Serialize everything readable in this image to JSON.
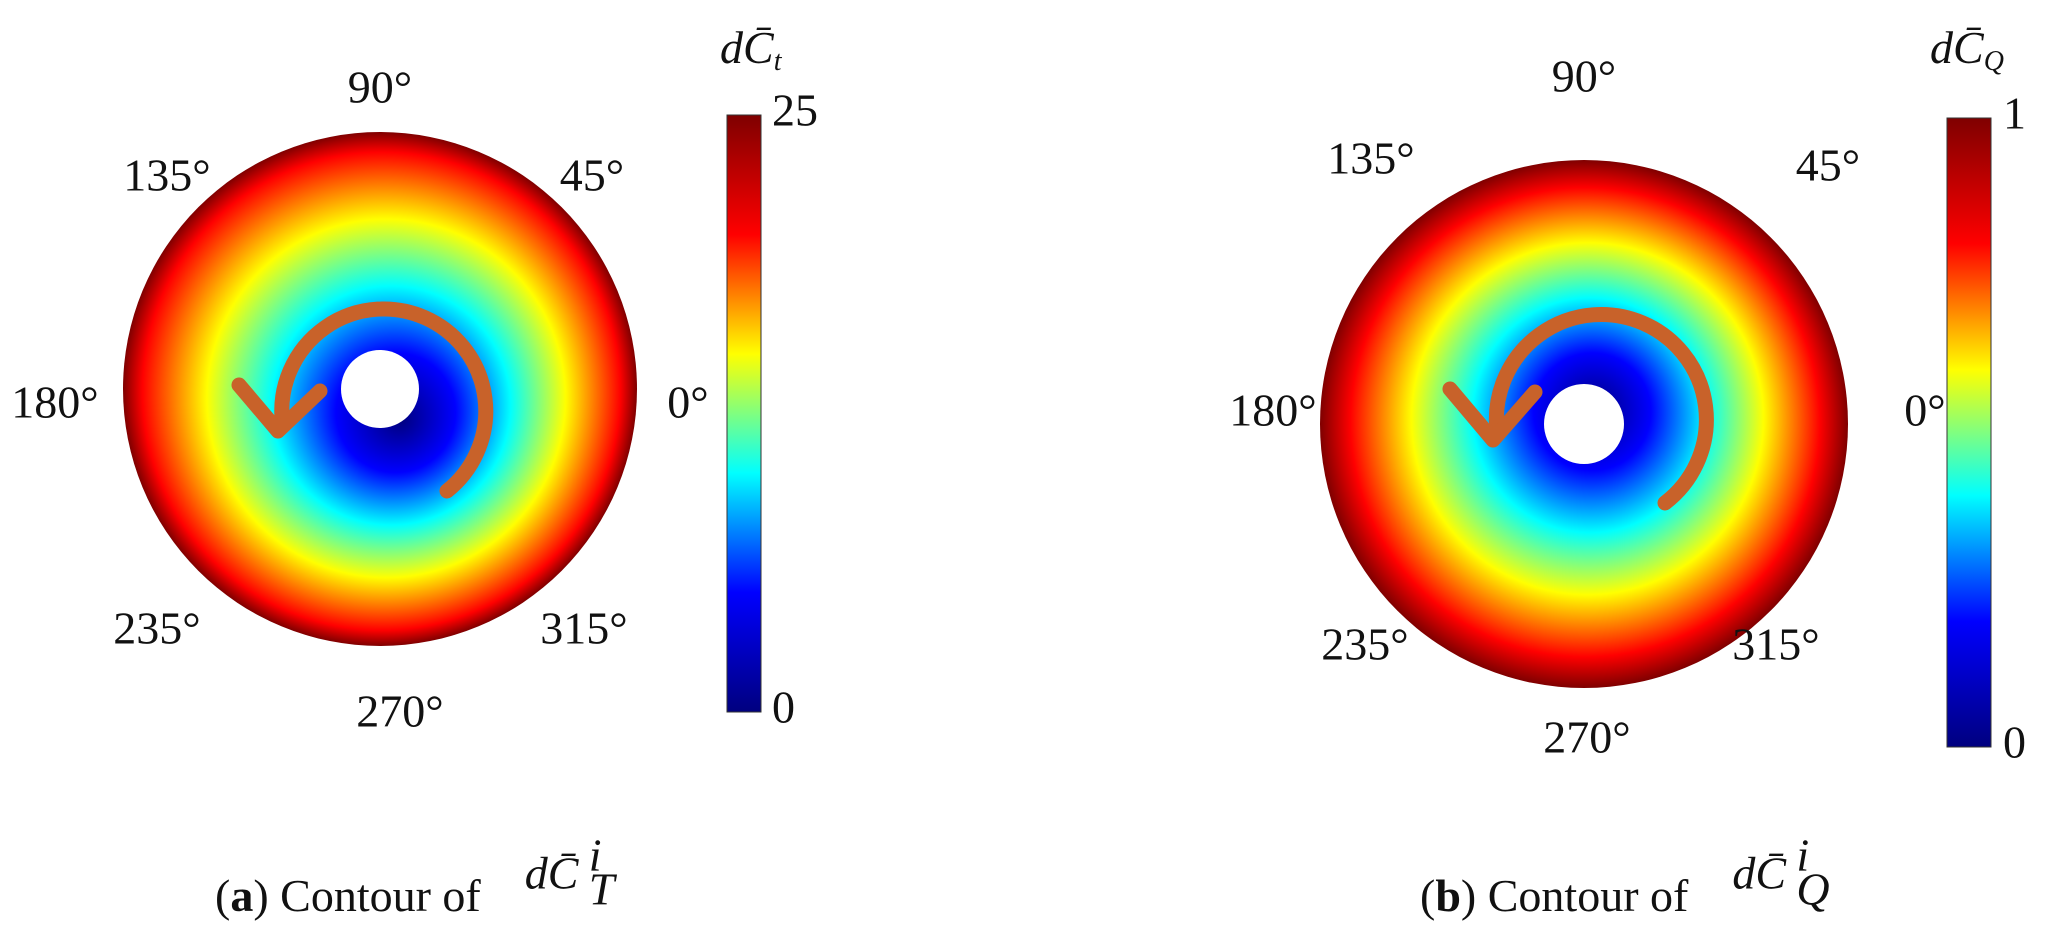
{
  "chart_data": [
    {
      "type": "polar-contour",
      "angle_labels": [
        "90°",
        "45°",
        "135°",
        "180°",
        "0°",
        "235°",
        "315°",
        "270°"
      ],
      "colorbar_label": {
        "base": "dC̄",
        "sub": "t"
      },
      "zlim": [
        0,
        25
      ],
      "zticks": [
        0,
        25
      ],
      "colormap": [
        "#00007f",
        "#0000ff",
        "#00ffff",
        "#ffff00",
        "#ff0000",
        "#7f0000"
      ],
      "arrow_color": "#c8622a",
      "caption": {
        "open": "(",
        "letter": "a",
        "text": ") Contour of",
        "symbol": "dC̄",
        "sup": "i",
        "sub": "T"
      }
    },
    {
      "type": "polar-contour",
      "angle_labels": [
        "90°",
        "45°",
        "135°",
        "180°",
        "0°",
        "235°",
        "315°",
        "270°"
      ],
      "colorbar_label": {
        "base": "dC̄",
        "sub": "Q"
      },
      "zlim": [
        0,
        1
      ],
      "zticks": [
        0,
        1
      ],
      "colormap": [
        "#00007f",
        "#0000ff",
        "#00ffff",
        "#ffff00",
        "#ff0000",
        "#7f0000"
      ],
      "arrow_color": "#c8622a",
      "caption": {
        "open": "(",
        "letter": "b",
        "text": ") Contour of",
        "symbol": "dC̄",
        "sup": "i",
        "sub": "Q"
      }
    }
  ]
}
